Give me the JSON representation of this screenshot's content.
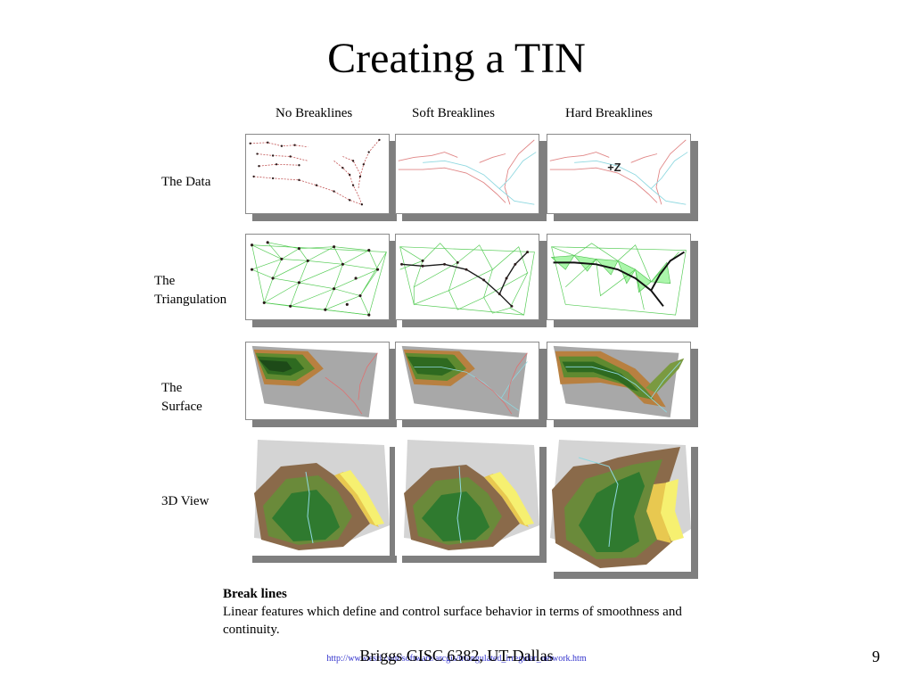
{
  "slide": {
    "title": "Creating a TIN",
    "footer": "Briggs GISC 6382, UT-Dallas",
    "page_number": "9",
    "source_url": "http://www.esri.com/software/arcgis/triangulated_irregular_network.htm"
  },
  "figure": {
    "columns": [
      "No Breaklines",
      "Soft Breaklines",
      "Hard Breaklines"
    ],
    "rows": {
      "data": "The Data",
      "triangulation_line1": "The",
      "triangulation_line2": "Triangulation",
      "surface_line1": "The",
      "surface_line2": "Surface",
      "view3d": "3D View"
    },
    "annotation": "+Z"
  },
  "caption": {
    "heading": "Break lines",
    "body": "Linear features which define and control surface behavior in terms of smoothness and continuity."
  }
}
